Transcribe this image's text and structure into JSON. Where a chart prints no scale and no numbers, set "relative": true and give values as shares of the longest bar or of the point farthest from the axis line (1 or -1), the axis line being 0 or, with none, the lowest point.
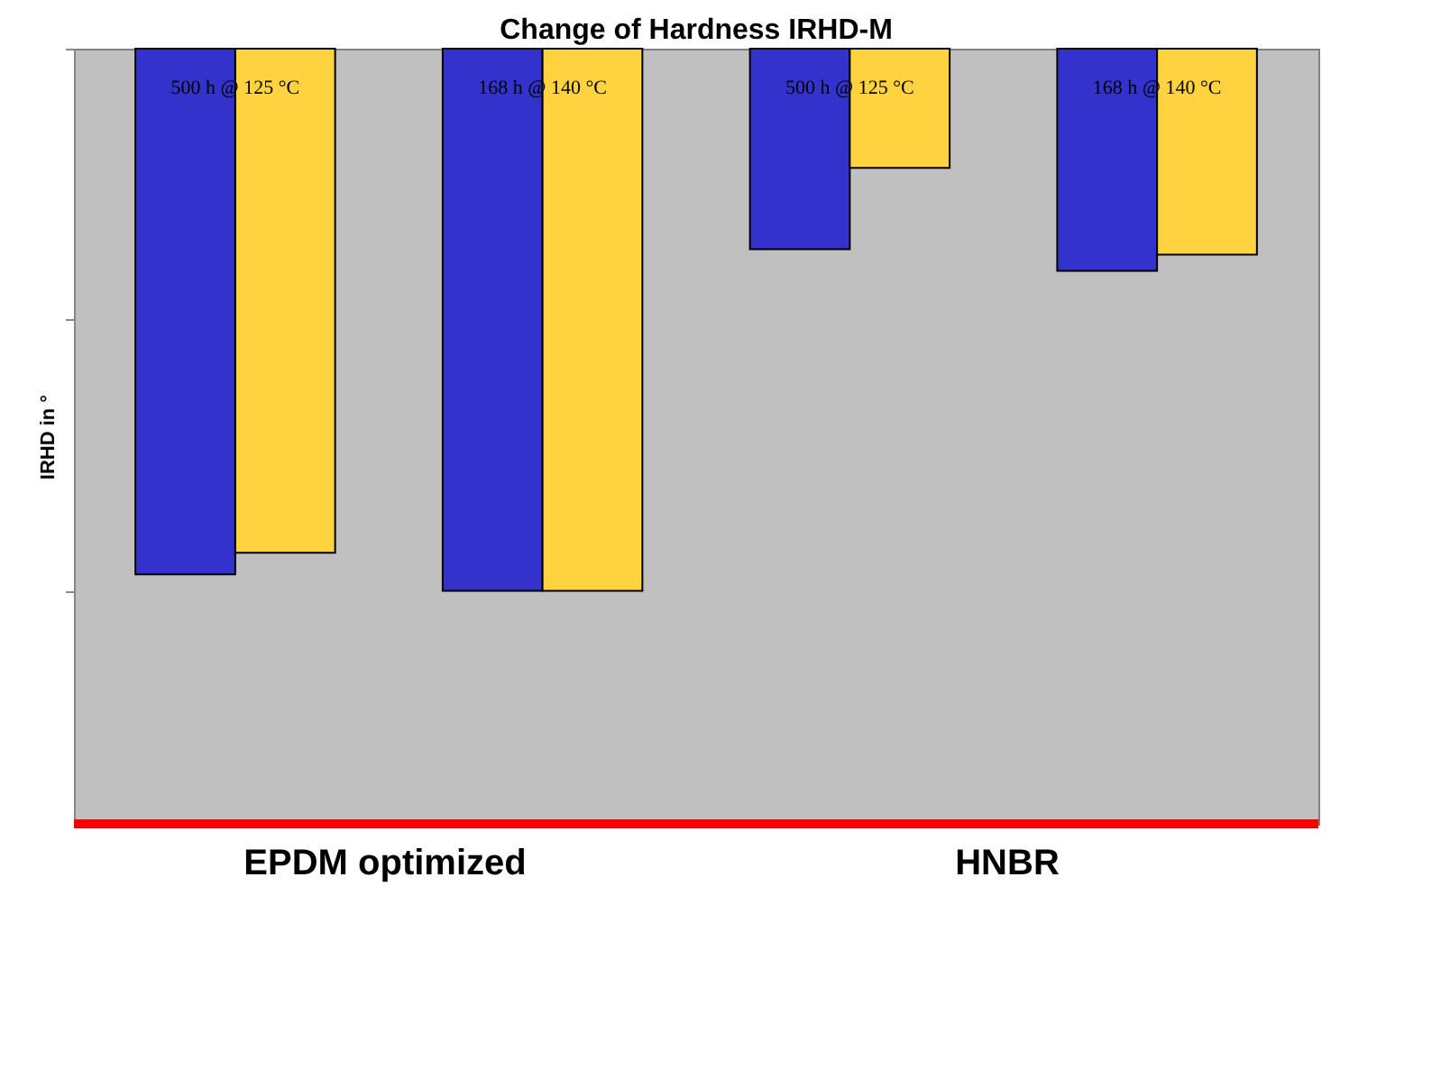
{
  "chart_data": {
    "type": "bar",
    "title": "Change of Hardness IRHD-M",
    "ylabel": "IRHD in °",
    "relative": true,
    "tick_labels": false,
    "categories": [
      "500 h @ 125 °C",
      "168 h @ 140 °C",
      "500 h @ 125 °C",
      "168 h @ 140 °C"
    ],
    "series": [
      {
        "color": "#3333cc",
        "values": [
          -0.97,
          -1.0,
          -0.37,
          -0.41
        ]
      },
      {
        "color": "#ffd23f",
        "values": [
          -0.93,
          -1.0,
          -0.22,
          -0.38
        ]
      }
    ],
    "ref_lines": [
      {
        "axis": "y",
        "value": -1.43,
        "color": "#ff0000"
      }
    ],
    "annotations": [
      "EPDM optimized",
      "HNBR"
    ]
  }
}
